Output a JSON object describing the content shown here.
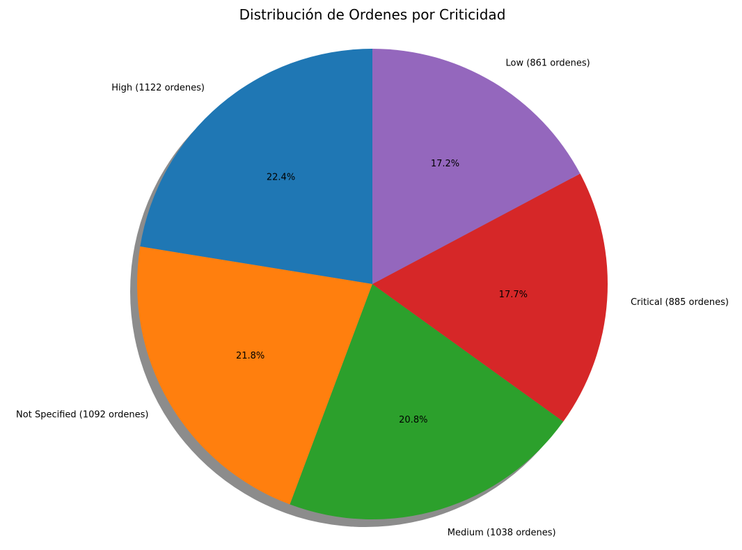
{
  "chart_data": {
    "type": "pie",
    "title": "Distribución de Ordenes por Criticidad",
    "start_angle_deg": 90,
    "direction": "counterclockwise",
    "shadow": true,
    "slices": [
      {
        "category": "High",
        "label": "High (1122 ordenes)",
        "value": 1122,
        "percent_label": "22.4%",
        "color": "#1f77b4"
      },
      {
        "category": "Not Specified",
        "label": "Not Specified (1092 ordenes)",
        "value": 1092,
        "percent_label": "21.8%",
        "color": "#ff7f0e"
      },
      {
        "category": "Medium",
        "label": "Medium (1038 ordenes)",
        "value": 1038,
        "percent_label": "20.8%",
        "color": "#2ca02c"
      },
      {
        "category": "Critical",
        "label": "Critical (885 ordenes)",
        "value": 885,
        "percent_label": "17.7%",
        "color": "#d62728"
      },
      {
        "category": "Low",
        "label": "Low (861 ordenes)",
        "value": 861,
        "percent_label": "17.2%",
        "color": "#9467bd"
      }
    ]
  }
}
